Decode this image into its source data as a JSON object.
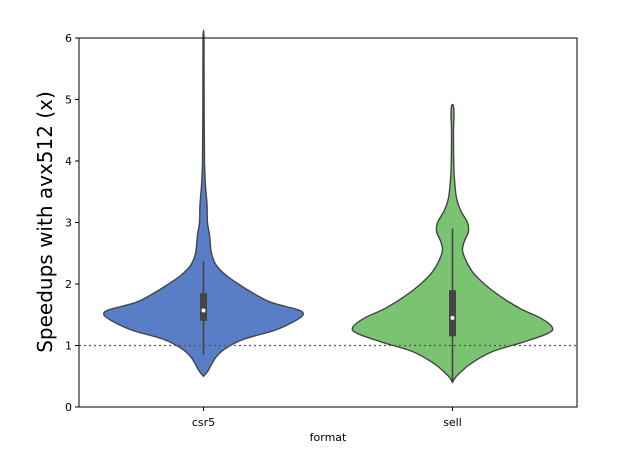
{
  "chart_data": {
    "type": "violin",
    "title": "",
    "xlabel": "format",
    "ylabel": "Speedups with avx512 (x)",
    "ylim": [
      0,
      6
    ],
    "yticks": [
      "0",
      "1",
      "2",
      "3",
      "4",
      "5",
      "6"
    ],
    "grid": false,
    "reference_line": {
      "y": 1,
      "style": "dotted"
    },
    "categories": [
      "csr5",
      "sell"
    ],
    "series": [
      {
        "category": "csr5",
        "color": "#5a7dc8",
        "min": 0.5,
        "max": 6.0,
        "q1": 1.4,
        "median": 1.57,
        "q3": 1.85,
        "whisker_low": 0.85,
        "whisker_high": 2.37,
        "density_profile": [
          [
            0.5,
            0.0
          ],
          [
            0.6,
            0.05
          ],
          [
            0.8,
            0.12
          ],
          [
            0.95,
            0.22
          ],
          [
            1.1,
            0.4
          ],
          [
            1.25,
            0.72
          ],
          [
            1.4,
            0.92
          ],
          [
            1.5,
            1.0
          ],
          [
            1.58,
            0.95
          ],
          [
            1.7,
            0.68
          ],
          [
            1.85,
            0.5
          ],
          [
            2.0,
            0.35
          ],
          [
            2.15,
            0.22
          ],
          [
            2.3,
            0.13
          ],
          [
            2.5,
            0.08
          ],
          [
            2.8,
            0.06
          ],
          [
            3.0,
            0.04
          ],
          [
            3.3,
            0.035
          ],
          [
            3.6,
            0.02
          ],
          [
            4.0,
            0.01
          ],
          [
            5.0,
            0.006
          ],
          [
            6.0,
            0.005
          ]
        ]
      },
      {
        "category": "sell",
        "color": "#7ac471",
        "min": 0.4,
        "max": 4.9,
        "q1": 1.15,
        "median": 1.45,
        "q3": 1.9,
        "whisker_low": 0.4,
        "whisker_high": 2.9,
        "density_profile": [
          [
            0.4,
            0.0
          ],
          [
            0.5,
            0.04
          ],
          [
            0.7,
            0.18
          ],
          [
            0.9,
            0.4
          ],
          [
            1.05,
            0.7
          ],
          [
            1.2,
            0.96
          ],
          [
            1.3,
            1.0
          ],
          [
            1.45,
            0.88
          ],
          [
            1.6,
            0.68
          ],
          [
            1.8,
            0.48
          ],
          [
            2.0,
            0.32
          ],
          [
            2.2,
            0.2
          ],
          [
            2.4,
            0.13
          ],
          [
            2.55,
            0.1
          ],
          [
            2.7,
            0.12
          ],
          [
            2.85,
            0.16
          ],
          [
            3.0,
            0.15
          ],
          [
            3.2,
            0.08
          ],
          [
            3.4,
            0.04
          ],
          [
            3.7,
            0.02
          ],
          [
            4.0,
            0.012
          ],
          [
            4.5,
            0.01
          ],
          [
            4.75,
            0.015
          ],
          [
            4.9,
            0.008
          ]
        ]
      }
    ]
  }
}
